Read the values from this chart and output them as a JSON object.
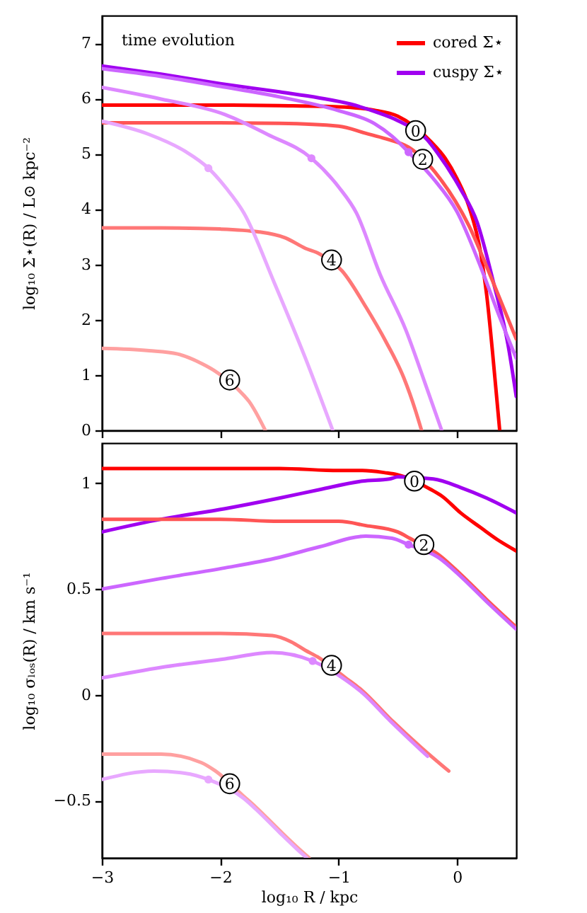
{
  "chart_data": [
    {
      "type": "line",
      "ylabel": "log₁₀ Σ⋆(R) / L⊙ kpc⁻²",
      "xlim": [
        -3,
        0.5
      ],
      "xticks": [
        -3,
        -2,
        -1,
        0
      ],
      "ylim": [
        0,
        7.5
      ],
      "yticks": [
        0,
        1,
        2,
        3,
        4,
        5,
        6,
        7
      ],
      "tick_labels": "y",
      "legend": "top right",
      "annotations": [
        "time evolution",
        {
          "text": "0",
          "x": -0.35,
          "y": 5.42
        },
        {
          "text": "2",
          "x": -0.29,
          "y": 4.9
        },
        {
          "text": "4",
          "x": -1.06,
          "y": 3.08
        },
        {
          "text": "6",
          "x": -1.92,
          "y": 0.91
        }
      ],
      "series": [
        {
          "name": "cored Σ⋆",
          "color": "#ff0000",
          "x": [
            -3,
            -2,
            -1.5,
            -1,
            -0.7,
            -0.5,
            -0.22,
            -0.1,
            0,
            0.1,
            0.2,
            0.25,
            0.3,
            0.33,
            0.36
          ],
          "values": [
            5.88,
            5.88,
            5.87,
            5.85,
            5.79,
            5.68,
            5.22,
            4.92,
            4.55,
            4.05,
            3.2,
            2.45,
            1.4,
            0.7,
            0
          ]
        },
        {
          "name": "cuspy Σ⋆",
          "color": "#a000f0",
          "x": [
            -3,
            -2.5,
            -2,
            -1.5,
            -1.16,
            -0.9,
            -0.69,
            -0.5,
            -0.25,
            -0.17,
            0.03,
            0.17,
            0.31,
            0.43,
            0.5
          ],
          "values": [
            6.59,
            6.44,
            6.27,
            6.12,
            6.01,
            5.9,
            5.76,
            5.6,
            5.25,
            5.03,
            4.36,
            3.76,
            2.65,
            1.55,
            0.61
          ]
        },
        {
          "color": "#ff5555",
          "x": [
            -3,
            -2,
            -1.5,
            -1,
            -0.77,
            -0.6,
            -0.41,
            -0.15,
            0.1,
            0.3,
            0.5
          ],
          "values": [
            5.56,
            5.56,
            5.55,
            5.5,
            5.37,
            5.27,
            5.12,
            4.57,
            3.7,
            2.7,
            1.65
          ]
        },
        {
          "color": "#cc66ff",
          "x": [
            -3,
            -2.5,
            -2,
            -1.5,
            -1,
            -0.7,
            -0.55,
            -0.41,
            -0.2,
            0,
            0.2,
            0.35,
            0.5
          ],
          "values": [
            6.54,
            6.4,
            6.22,
            6.03,
            5.78,
            5.55,
            5.32,
            5.03,
            4.55,
            3.95,
            2.95,
            2.1,
            1.3
          ]
        },
        {
          "color": "#ff7777",
          "x": [
            -3,
            -2.5,
            -2,
            -1.68,
            -1.45,
            -1.28,
            -1.17,
            -0.97,
            -0.77,
            -0.6,
            -0.45,
            -0.35,
            -0.3
          ],
          "values": [
            3.66,
            3.66,
            3.64,
            3.59,
            3.48,
            3.29,
            3.2,
            2.88,
            2.23,
            1.6,
            0.95,
            0.35,
            0
          ]
        },
        {
          "color": "#dd88ff",
          "x": [
            -3,
            -2.5,
            -1.96,
            -1.6,
            -1.23,
            -1,
            -0.85,
            -0.65,
            -0.43,
            -0.27,
            -0.13
          ],
          "values": [
            6.2,
            5.99,
            5.71,
            5.35,
            4.92,
            4.4,
            3.93,
            2.82,
            1.8,
            0.85,
            0
          ]
        },
        {
          "color": "#ffa0a0",
          "x": [
            -3,
            -2.6,
            -2.36,
            -2.15,
            -2.05,
            -1.8,
            -1.76,
            -1.62
          ],
          "values": [
            1.48,
            1.44,
            1.38,
            1.2,
            1.08,
            0.63,
            0.53,
            0
          ]
        },
        {
          "color": "#e8a8ff",
          "x": [
            -3,
            -2.6,
            -2.3,
            -2.1,
            -1.95,
            -1.8,
            -1.54,
            -1.28,
            -1.05
          ],
          "values": [
            5.59,
            5.35,
            5.05,
            4.74,
            4.38,
            3.93,
            2.65,
            1.3,
            0
          ]
        },
        {
          "type": "scatter",
          "color": "#cc66ff",
          "x": [
            -0.41
          ],
          "values": [
            5.03
          ]
        },
        {
          "type": "scatter",
          "color": "#dd88ff",
          "x": [
            -1.23
          ],
          "values": [
            4.92
          ]
        },
        {
          "type": "scatter",
          "color": "#e8a8ff",
          "x": [
            -2.1
          ],
          "values": [
            4.74
          ]
        }
      ]
    },
    {
      "type": "line",
      "xlabel": "log₁₀ R / kpc",
      "ylabel": "log₁₀ σₗₒₛ(R) / km s⁻¹",
      "xlim": [
        -3,
        0.5
      ],
      "xticks": [
        -3,
        -2,
        -1,
        0
      ],
      "ylim": [
        -0.77,
        1.19
      ],
      "yticks": [
        -0.5,
        0,
        0.5,
        1
      ],
      "annotations": [
        {
          "text": "0",
          "x": -0.36,
          "y": 1.01
        },
        {
          "text": "2",
          "x": -0.28,
          "y": 0.71
        },
        {
          "text": "4",
          "x": -1.06,
          "y": 0.14
        },
        {
          "text": "6",
          "x": -1.92,
          "y": -0.42
        }
      ],
      "series": [
        {
          "color": "#ff0000",
          "x": [
            -3,
            -2,
            -1.5,
            -1,
            -0.8,
            -0.61,
            -0.5,
            -0.22,
            -0.13,
            0.03,
            0.2,
            0.35,
            0.5
          ],
          "values": [
            1.07,
            1.07,
            1.07,
            1.06,
            1.06,
            1.05,
            1.04,
            0.97,
            0.94,
            0.86,
            0.79,
            0.73,
            0.68
          ]
        },
        {
          "color": "#a000f0",
          "x": [
            -3,
            -2.5,
            -1.96,
            -1.5,
            -1.16,
            -0.8,
            -0.57,
            -0.5,
            -0.2,
            0.03,
            0.25,
            0.5
          ],
          "values": [
            0.77,
            0.83,
            0.88,
            0.93,
            0.97,
            1.01,
            1.02,
            1.03,
            1.02,
            0.98,
            0.93,
            0.86
          ]
        },
        {
          "color": "#ff5555",
          "x": [
            -3,
            -2,
            -1.5,
            -1,
            -0.77,
            -0.5,
            -0.4,
            -0.15,
            0.03,
            0.25,
            0.5
          ],
          "values": [
            0.83,
            0.83,
            0.82,
            0.82,
            0.8,
            0.77,
            0.74,
            0.66,
            0.57,
            0.45,
            0.32
          ]
        },
        {
          "color": "#cc66ff",
          "x": [
            -3,
            -2.5,
            -1.96,
            -1.5,
            -1.16,
            -0.77,
            -0.55,
            -0.41,
            -0.16,
            0.03,
            0.25,
            0.5
          ],
          "values": [
            0.5,
            0.55,
            0.6,
            0.65,
            0.7,
            0.75,
            0.74,
            0.71,
            0.65,
            0.56,
            0.44,
            0.31
          ]
        },
        {
          "color": "#ff7777",
          "x": [
            -3,
            -2,
            -1.56,
            -1.4,
            -1.28,
            -1.18,
            -0.94,
            -0.8,
            -0.57,
            -0.3,
            -0.07
          ],
          "values": [
            0.29,
            0.29,
            0.28,
            0.25,
            0.21,
            0.18,
            0.08,
            0.02,
            -0.11,
            -0.25,
            -0.36
          ]
        },
        {
          "color": "#dd88ff",
          "x": [
            -3,
            -2.5,
            -1.96,
            -1.56,
            -1.22,
            -0.94,
            -0.8,
            -0.57,
            -0.25
          ],
          "values": [
            0.08,
            0.13,
            0.17,
            0.2,
            0.16,
            0.07,
            0.01,
            -0.12,
            -0.29
          ]
        },
        {
          "color": "#ffa0a0",
          "x": [
            -3,
            -2.5,
            -2.16,
            -2.04,
            -1.8,
            -1.7,
            -1.5,
            -1.35,
            -1.25
          ],
          "values": [
            -0.28,
            -0.28,
            -0.32,
            -0.36,
            -0.48,
            -0.53,
            -0.64,
            -0.72,
            -0.77
          ]
        },
        {
          "color": "#e8a8ff",
          "x": [
            -3,
            -2.56,
            -2.3,
            -2.1,
            -1.8,
            -1.7,
            -1.5,
            -1.35,
            -1.27
          ],
          "values": [
            -0.4,
            -0.36,
            -0.37,
            -0.4,
            -0.49,
            -0.54,
            -0.65,
            -0.73,
            -0.77
          ]
        },
        {
          "type": "scatter",
          "color": "#cc66ff",
          "x": [
            -0.41
          ],
          "values": [
            0.71
          ]
        },
        {
          "type": "scatter",
          "color": "#dd88ff",
          "x": [
            -1.22
          ],
          "values": [
            0.16
          ]
        },
        {
          "type": "scatter",
          "color": "#e8a8ff",
          "x": [
            -2.1
          ],
          "values": [
            -0.4
          ]
        }
      ]
    }
  ]
}
